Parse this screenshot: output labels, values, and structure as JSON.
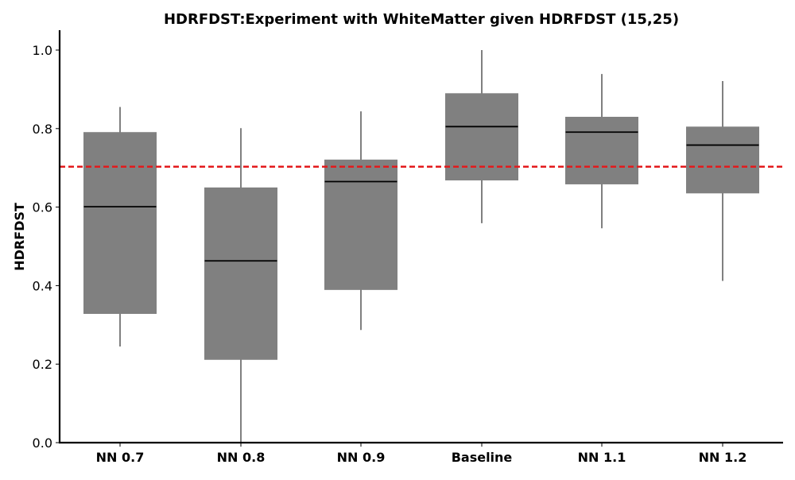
{
  "chart_data": {
    "type": "box",
    "title": "HDRFDST:Experiment with WhiteMatter given HDRFDST (15,25)",
    "xlabel": "",
    "ylabel": "HDRFDST",
    "ylim": [
      0.0,
      1.05
    ],
    "yticks": [
      "0.0",
      "0.2",
      "0.4",
      "0.6",
      "0.8",
      "1.0"
    ],
    "grid": false,
    "box_color": "#808080",
    "median_color": "#000000",
    "reference_line": {
      "value": 0.703,
      "color": "#e31a1c",
      "style": "dashed"
    },
    "categories": [
      "NN 0.7",
      "NN 0.8",
      "NN 0.9",
      "Baseline",
      "NN 1.1",
      "NN 1.2"
    ],
    "boxes": [
      {
        "label": "NN 0.7",
        "whisker_low": 0.245,
        "q1": 0.329,
        "median": 0.601,
        "q3": 0.79,
        "whisker_high": 0.855
      },
      {
        "label": "NN 0.8",
        "whisker_low": 0.0,
        "q1": 0.212,
        "median": 0.463,
        "q3": 0.649,
        "whisker_high": 0.801
      },
      {
        "label": "NN 0.9",
        "whisker_low": 0.287,
        "q1": 0.39,
        "median": 0.665,
        "q3": 0.72,
        "whisker_high": 0.844
      },
      {
        "label": "Baseline",
        "whisker_low": 0.559,
        "q1": 0.669,
        "median": 0.805,
        "q3": 0.889,
        "whisker_high": 1.0
      },
      {
        "label": "NN 1.1",
        "whisker_low": 0.546,
        "q1": 0.659,
        "median": 0.791,
        "q3": 0.829,
        "whisker_high": 0.939
      },
      {
        "label": "NN 1.2",
        "whisker_low": 0.412,
        "q1": 0.636,
        "median": 0.758,
        "q3": 0.804,
        "whisker_high": 0.921
      }
    ]
  }
}
